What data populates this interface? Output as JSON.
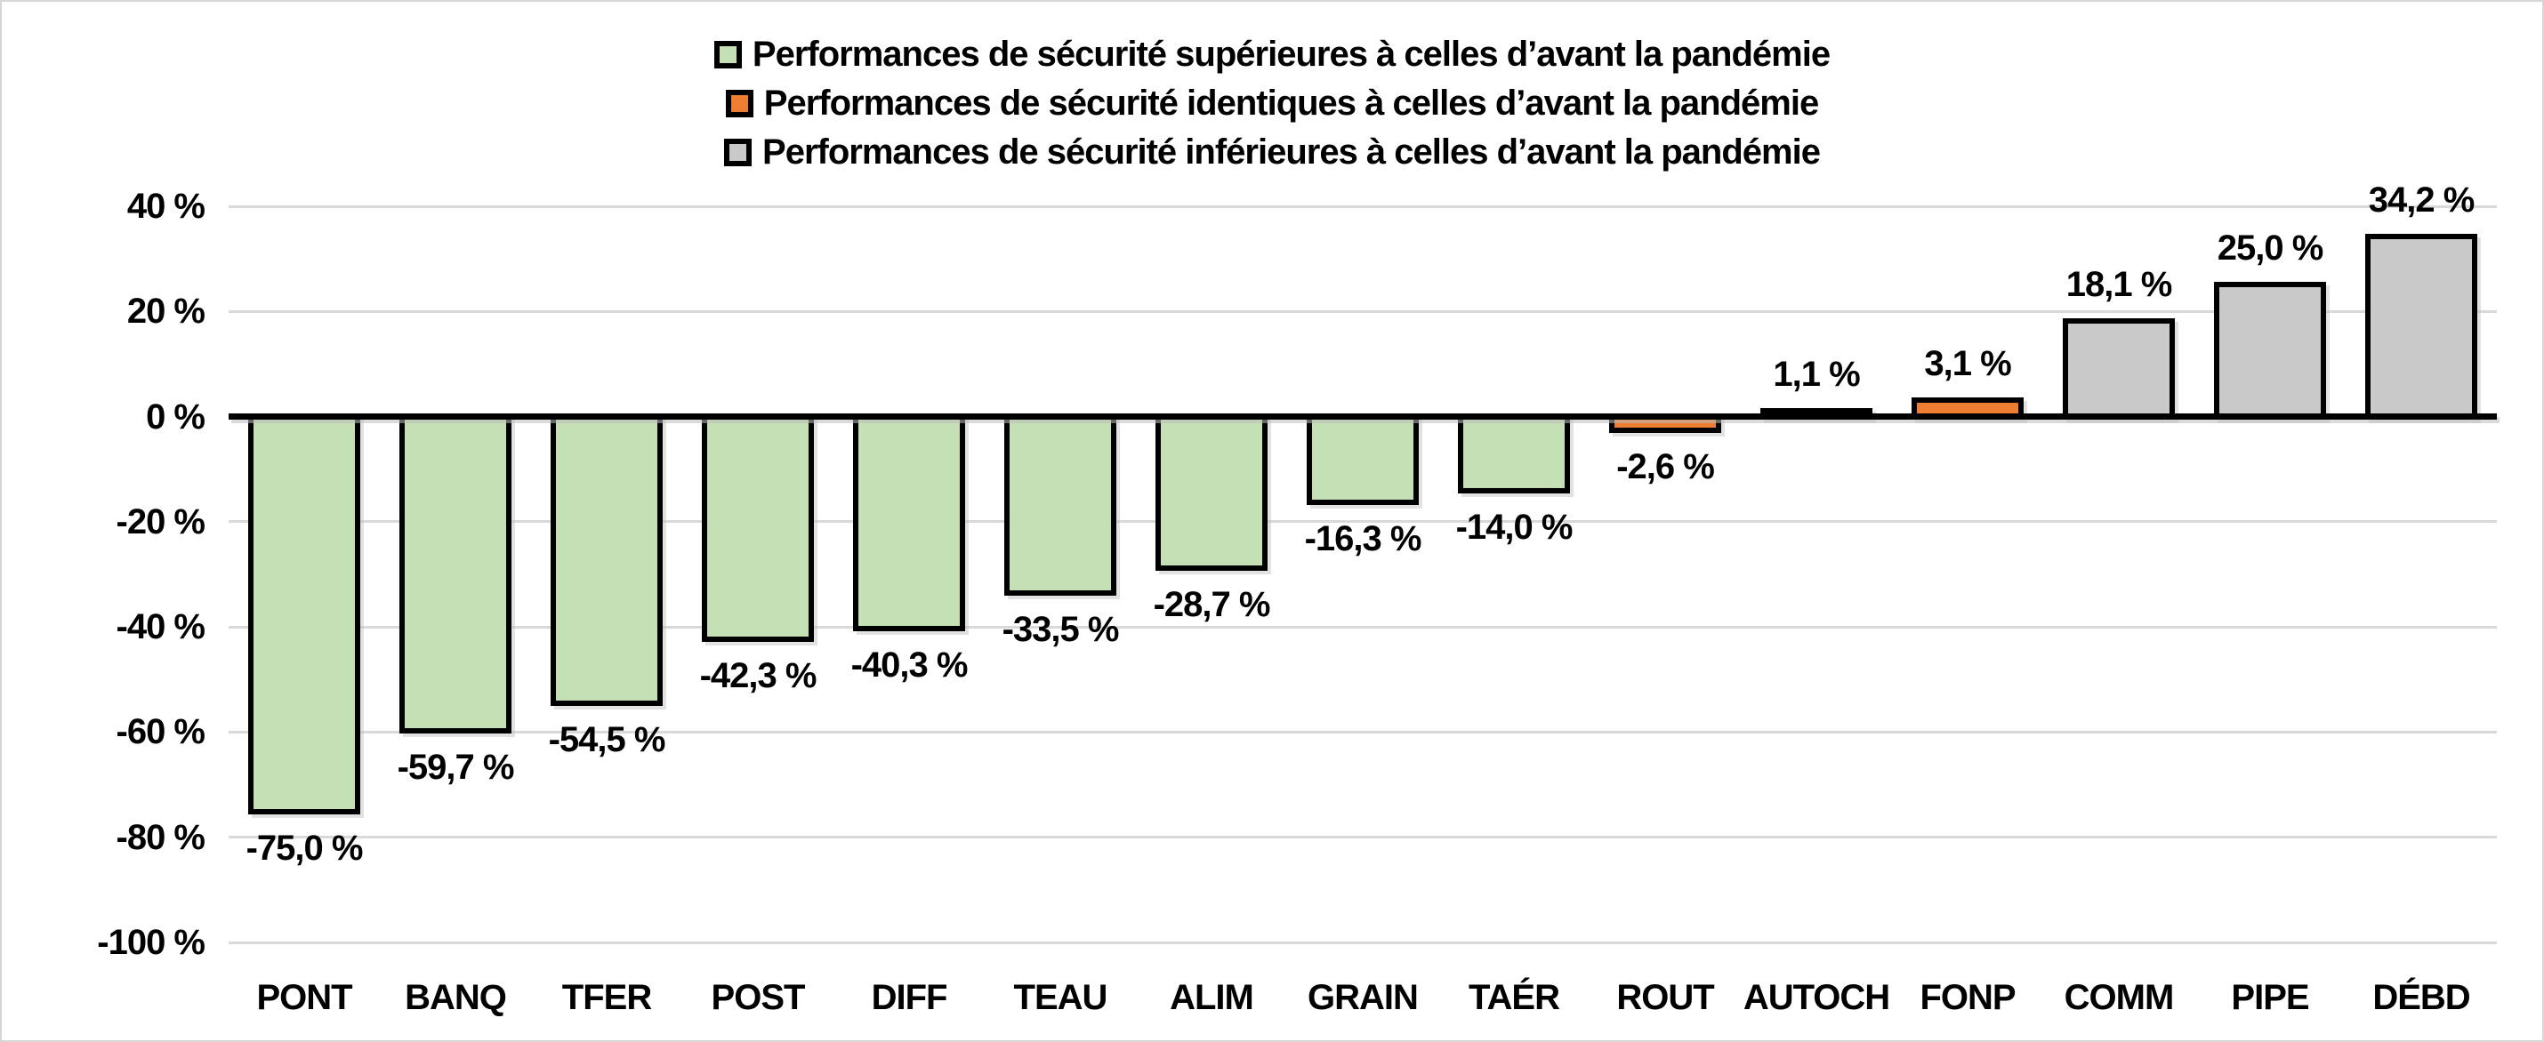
{
  "chart_data": {
    "type": "bar",
    "title": "",
    "categories": [
      "PONT",
      "BANQ",
      "TFER",
      "POST",
      "DIFF",
      "TEAU",
      "ALIM",
      "GRAIN",
      "TAÉR",
      "ROUT",
      "AUTOCH",
      "FONP",
      "COMM",
      "PIPE",
      "DÉBD"
    ],
    "values": [
      -75.0,
      -59.7,
      -54.5,
      -42.3,
      -40.3,
      -33.5,
      -28.7,
      -16.3,
      -14.0,
      -2.6,
      1.1,
      3.1,
      18.1,
      25.0,
      34.2
    ],
    "value_labels": [
      "-75,0 %",
      "-59,7 %",
      "-54,5 %",
      "-42,3 %",
      "-40,3 %",
      "-33,5 %",
      "-28,7 %",
      "-16,3 %",
      "-14,0 %",
      "-2,6 %",
      "1,1 %",
      "3,1 %",
      "18,1 %",
      "25,0 %",
      "34,2 %"
    ],
    "bar_color_keys": [
      "green",
      "green",
      "green",
      "green",
      "green",
      "green",
      "green",
      "green",
      "green",
      "orange",
      "orange",
      "orange",
      "gray",
      "gray",
      "gray"
    ],
    "ylim": [
      -100,
      40
    ],
    "yticks": [
      40,
      20,
      0,
      -20,
      -40,
      -60,
      -80,
      -100
    ],
    "ytick_labels": [
      "40 %",
      "20 %",
      "0 %",
      "-20 %",
      "-40 %",
      "-60 %",
      "-80 %",
      "-100 %"
    ],
    "grid": true,
    "legend_position": "top-center",
    "legend": [
      {
        "label": "Performances de sécurité supérieures à celles d’avant la pandémie",
        "color_key": "green"
      },
      {
        "label": "Performances de sécurité identiques à celles d’avant la pandémie",
        "color_key": "orange"
      },
      {
        "label": "Performances de sécurité inférieures à celles d’avant la pandémie",
        "color_key": "gray"
      }
    ],
    "colors": {
      "green": "#C5E0B4",
      "orange": "#ED7D31",
      "gray": "#C9C9C9",
      "bar_border": "#000000",
      "axis_line": "#000000",
      "gridline": "#D9D9D9"
    }
  }
}
